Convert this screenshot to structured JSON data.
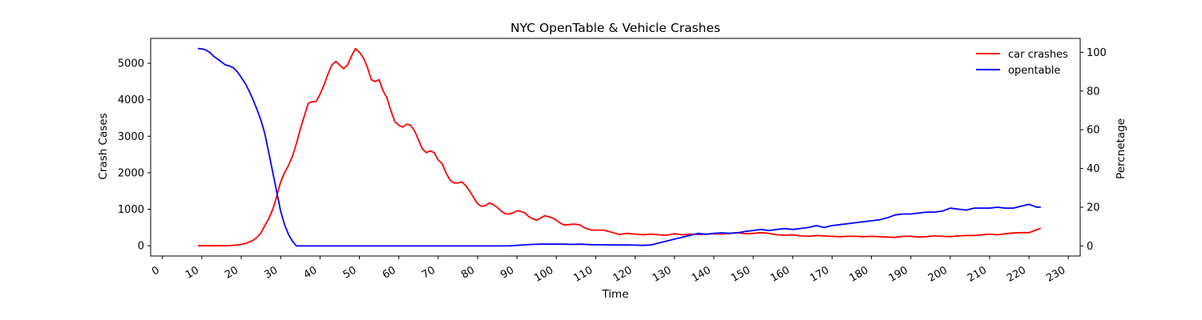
{
  "chart_data": {
    "type": "line",
    "title": "NYC OpenTable & Vehicle Crashes",
    "xlabel": "Time",
    "ylabel_left": "Crash Cases",
    "ylabel_right": "Percnetage",
    "xlim": [
      -3,
      233
    ],
    "ylim_left": [
      -280,
      5680
    ],
    "ylim_right": [
      -5.2,
      107.2
    ],
    "x_ticks": [
      "0",
      "10",
      "20",
      "30",
      "40",
      "50",
      "60",
      "70",
      "80",
      "90",
      "100",
      "110",
      "120",
      "130",
      "140",
      "150",
      "160",
      "170",
      "180",
      "190",
      "200",
      "210",
      "220",
      "230"
    ],
    "y_ticks_left": [
      "0",
      "1000",
      "2000",
      "3000",
      "4000",
      "5000"
    ],
    "y_ticks_right": [
      "0",
      "20",
      "40",
      "60",
      "80",
      "100"
    ],
    "grid": false,
    "legend_position": "top-right",
    "series": [
      {
        "name": "car crashes",
        "axis": "left",
        "color": "#ff0000",
        "x": [
          9,
          12,
          15,
          17,
          19,
          21,
          23,
          24,
          25,
          26,
          27,
          28,
          29,
          30,
          31,
          32,
          33,
          34,
          35,
          36,
          37,
          38,
          39,
          40,
          41,
          42,
          43,
          44,
          45,
          46,
          47,
          48,
          49,
          50,
          51,
          52,
          53,
          54,
          55,
          56,
          57,
          58,
          59,
          60,
          61,
          62,
          63,
          64,
          65,
          66,
          67,
          68,
          69,
          70,
          71,
          72,
          73,
          74,
          75,
          76,
          77,
          78,
          79,
          80,
          81,
          82,
          83,
          84,
          85,
          86,
          87,
          88,
          89,
          90,
          91,
          92,
          93,
          94,
          95,
          96,
          97,
          98,
          99,
          100,
          101,
          102,
          103,
          104,
          105,
          106,
          107,
          108,
          109,
          110,
          112,
          114,
          116,
          118,
          120,
          122,
          124,
          126,
          128,
          130,
          132,
          134,
          136,
          138,
          140,
          142,
          144,
          146,
          148,
          150,
          152,
          154,
          156,
          158,
          160,
          162,
          164,
          166,
          168,
          170,
          172,
          174,
          176,
          178,
          180,
          182,
          184,
          186,
          188,
          190,
          192,
          194,
          196,
          198,
          200,
          202,
          204,
          206,
          208,
          210,
          212,
          214,
          216,
          218,
          220,
          221,
          222,
          223
        ],
        "values": [
          0,
          0,
          0,
          5,
          20,
          60,
          150,
          230,
          350,
          550,
          750,
          1000,
          1350,
          1750,
          2000,
          2200,
          2450,
          2800,
          3200,
          3550,
          3900,
          3950,
          3950,
          4150,
          4400,
          4700,
          4950,
          5050,
          4950,
          4850,
          4950,
          5200,
          5400,
          5300,
          5150,
          4900,
          4550,
          4500,
          4550,
          4250,
          4050,
          3700,
          3400,
          3300,
          3250,
          3330,
          3300,
          3150,
          2900,
          2650,
          2550,
          2600,
          2550,
          2350,
          2250,
          2000,
          1800,
          1720,
          1720,
          1750,
          1650,
          1500,
          1320,
          1150,
          1080,
          1100,
          1170,
          1130,
          1050,
          950,
          880,
          870,
          900,
          960,
          940,
          900,
          800,
          740,
          700,
          760,
          820,
          800,
          760,
          700,
          620,
          570,
          580,
          590,
          590,
          570,
          500,
          460,
          430,
          430,
          430,
          370,
          310,
          340,
          320,
          300,
          320,
          300,
          290,
          330,
          300,
          320,
          310,
          320,
          330,
          320,
          340,
          360,
          330,
          340,
          360,
          340,
          300,
          290,
          300,
          270,
          260,
          280,
          270,
          260,
          250,
          260,
          260,
          250,
          260,
          250,
          240,
          230,
          260,
          260,
          240,
          250,
          270,
          260,
          250,
          270,
          280,
          280,
          300,
          320,
          300,
          330,
          350,
          360,
          360,
          400,
          440,
          480
        ]
      },
      {
        "name": "opentable",
        "axis": "right",
        "color": "#0000ff",
        "x": [
          9,
          10,
          11,
          12,
          13,
          14,
          15,
          16,
          17,
          18,
          19,
          20,
          21,
          22,
          23,
          24,
          25,
          26,
          27,
          28,
          29,
          30,
          31,
          32,
          33,
          34,
          35,
          36,
          40,
          50,
          60,
          70,
          80,
          86,
          88,
          90,
          92,
          94,
          96,
          98,
          100,
          102,
          104,
          106,
          108,
          110,
          112,
          114,
          116,
          118,
          120,
          122,
          124,
          126,
          128,
          130,
          132,
          134,
          136,
          138,
          140,
          142,
          144,
          146,
          148,
          150,
          152,
          154,
          156,
          158,
          160,
          162,
          164,
          166,
          168,
          170,
          172,
          174,
          176,
          178,
          180,
          182,
          184,
          186,
          188,
          190,
          192,
          194,
          196,
          198,
          200,
          202,
          204,
          206,
          208,
          210,
          212,
          214,
          216,
          218,
          220,
          222,
          223
        ],
        "values": [
          102,
          101.8,
          101.2,
          100,
          98,
          96.5,
          95,
          93.5,
          93,
          92,
          90,
          87,
          84,
          80,
          75.5,
          70.5,
          65,
          58,
          48,
          38,
          28,
          18,
          11,
          6,
          2.5,
          0,
          0,
          0,
          0,
          0,
          0,
          0,
          0,
          0,
          0,
          0.3,
          0.6,
          0.8,
          0.9,
          0.9,
          0.9,
          0.9,
          0.8,
          0.9,
          0.7,
          0.6,
          0.6,
          0.5,
          0.5,
          0.5,
          0.4,
          0.3,
          0.5,
          1.5,
          2.5,
          3.5,
          4.5,
          5.5,
          6.5,
          6.0,
          6.5,
          6.8,
          6.5,
          6.8,
          7.5,
          8.0,
          8.5,
          8.0,
          8.5,
          9.0,
          8.5,
          9.0,
          9.5,
          10.5,
          9.5,
          10.5,
          11.0,
          11.5,
          12.0,
          12.5,
          13.0,
          13.5,
          14.5,
          16.0,
          16.5,
          16.5,
          17.0,
          17.5,
          17.5,
          18.0,
          19.5,
          19.0,
          18.5,
          19.5,
          19.5,
          19.5,
          20.0,
          19.5,
          19.5,
          20.5,
          21.5,
          20.0,
          20.0
        ]
      }
    ]
  }
}
